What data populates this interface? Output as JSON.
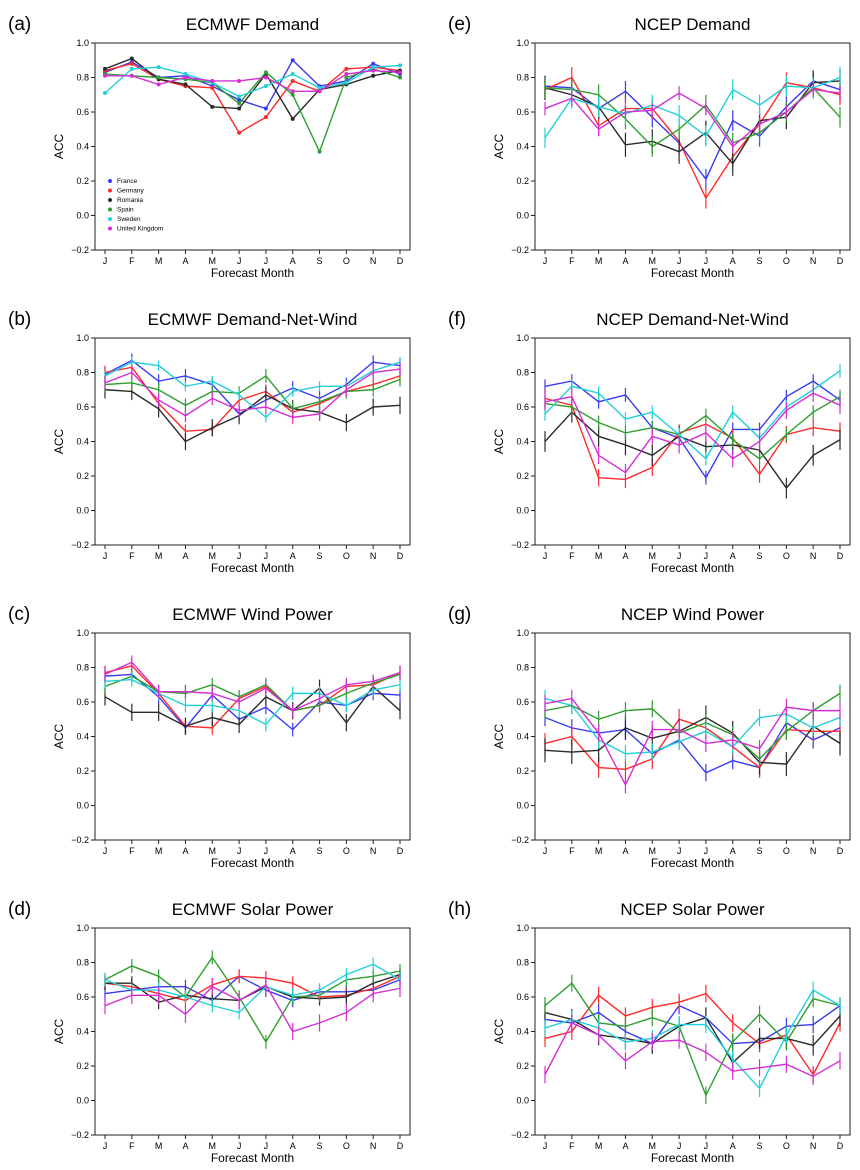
{
  "figure": {
    "x_axis_label": "Forecast Month",
    "y_axis_label": "ACC",
    "months": [
      "J",
      "F",
      "M",
      "A",
      "M",
      "J",
      "J",
      "A",
      "S",
      "O",
      "N",
      "D"
    ],
    "y_ticks": [
      "1.0",
      "0.8",
      "0.6",
      "0.4",
      "0.2",
      "0.0",
      "−0.2"
    ],
    "colors": {
      "France": "#3a3af0",
      "Germany": "#ff2a2a",
      "Romania": "#2a2a2a",
      "Spain": "#2e9e2e",
      "Sweden": "#22d0d8",
      "United Kingdom": "#d42ed4"
    },
    "legend": [
      "France",
      "Germany",
      "Romania",
      "Spain",
      "Sweden",
      "United Kingdom"
    ]
  },
  "chart_data": [
    {
      "type": "line",
      "panel": "(a)",
      "title": "ECMWF Demand",
      "xlabel": "Forecast Month",
      "ylabel": "ACC",
      "ylim": [
        -0.2,
        1.0
      ],
      "categories": [
        "J",
        "F",
        "M",
        "A",
        "M",
        "J",
        "J",
        "A",
        "S",
        "O",
        "N",
        "D"
      ],
      "series": [
        {
          "name": "France",
          "values": [
            0.83,
            0.89,
            0.8,
            0.81,
            0.75,
            0.67,
            0.62,
            0.9,
            0.75,
            0.78,
            0.88,
            0.82
          ]
        },
        {
          "name": "Germany",
          "values": [
            0.84,
            0.88,
            0.79,
            0.75,
            0.74,
            0.48,
            0.57,
            0.78,
            0.72,
            0.85,
            0.86,
            0.84
          ]
        },
        {
          "name": "Romania",
          "values": [
            0.85,
            0.91,
            0.79,
            0.76,
            0.63,
            0.62,
            0.82,
            0.56,
            0.73,
            0.76,
            0.81,
            0.84
          ]
        },
        {
          "name": "Spain",
          "values": [
            0.82,
            0.81,
            0.8,
            0.79,
            0.77,
            0.65,
            0.83,
            0.7,
            0.37,
            0.8,
            0.85,
            0.8
          ]
        },
        {
          "name": "Sweden",
          "values": [
            0.71,
            0.85,
            0.86,
            0.82,
            0.77,
            0.69,
            0.75,
            0.82,
            0.74,
            0.77,
            0.86,
            0.87
          ]
        },
        {
          "name": "United Kingdom",
          "values": [
            0.81,
            0.81,
            0.76,
            0.8,
            0.78,
            0.78,
            0.8,
            0.72,
            0.72,
            0.82,
            0.84,
            0.83
          ]
        }
      ]
    },
    {
      "type": "line",
      "panel": "(b)",
      "title": "ECMWF Demand-Net-Wind",
      "xlabel": "Forecast Month",
      "ylabel": "ACC",
      "ylim": [
        -0.2,
        1.0
      ],
      "categories": [
        "J",
        "F",
        "M",
        "A",
        "M",
        "J",
        "J",
        "A",
        "S",
        "O",
        "N",
        "D"
      ],
      "series": [
        {
          "name": "France",
          "values": [
            0.79,
            0.87,
            0.75,
            0.78,
            0.73,
            0.56,
            0.64,
            0.71,
            0.65,
            0.73,
            0.86,
            0.84
          ],
          "err": 0.04
        },
        {
          "name": "Germany",
          "values": [
            0.8,
            0.83,
            0.62,
            0.46,
            0.47,
            0.64,
            0.69,
            0.57,
            0.62,
            0.69,
            0.73,
            0.78
          ],
          "err": 0.04
        },
        {
          "name": "Romania",
          "values": [
            0.7,
            0.69,
            0.59,
            0.4,
            0.48,
            0.55,
            0.67,
            0.59,
            0.57,
            0.51,
            0.6,
            0.61
          ],
          "err": 0.05
        },
        {
          "name": "Spain",
          "values": [
            0.73,
            0.74,
            0.7,
            0.61,
            0.69,
            0.68,
            0.78,
            0.59,
            0.63,
            0.69,
            0.7,
            0.76
          ],
          "err": 0.04
        },
        {
          "name": "Sweden",
          "values": [
            0.78,
            0.86,
            0.84,
            0.72,
            0.75,
            0.67,
            0.54,
            0.69,
            0.72,
            0.72,
            0.81,
            0.86
          ],
          "err": 0.03
        },
        {
          "name": "United Kingdom",
          "values": [
            0.74,
            0.8,
            0.64,
            0.55,
            0.65,
            0.58,
            0.6,
            0.54,
            0.56,
            0.7,
            0.8,
            0.82
          ],
          "err": 0.04
        }
      ]
    },
    {
      "type": "line",
      "panel": "(c)",
      "title": "ECMWF Wind Power",
      "xlabel": "Forecast Month",
      "ylabel": "ACC",
      "ylim": [
        -0.2,
        1.0
      ],
      "categories": [
        "J",
        "F",
        "M",
        "A",
        "M",
        "J",
        "J",
        "A",
        "S",
        "O",
        "N",
        "D"
      ],
      "series": [
        {
          "name": "France",
          "values": [
            0.75,
            0.76,
            0.63,
            0.45,
            0.64,
            0.5,
            0.57,
            0.44,
            0.6,
            0.58,
            0.65,
            0.64
          ],
          "err": 0.04
        },
        {
          "name": "Germany",
          "values": [
            0.77,
            0.81,
            0.65,
            0.46,
            0.45,
            0.62,
            0.69,
            0.55,
            0.58,
            0.69,
            0.7,
            0.77
          ],
          "err": 0.04
        },
        {
          "name": "Romania",
          "values": [
            0.63,
            0.54,
            0.54,
            0.46,
            0.51,
            0.47,
            0.63,
            0.55,
            0.68,
            0.48,
            0.69,
            0.55
          ],
          "err": 0.05
        },
        {
          "name": "Spain",
          "values": [
            0.69,
            0.75,
            0.66,
            0.65,
            0.7,
            0.63,
            0.7,
            0.55,
            0.58,
            0.65,
            0.71,
            0.76
          ],
          "err": 0.04
        },
        {
          "name": "Sweden",
          "values": [
            0.72,
            0.73,
            0.65,
            0.58,
            0.58,
            0.55,
            0.47,
            0.65,
            0.65,
            0.58,
            0.67,
            0.7
          ],
          "err": 0.04
        },
        {
          "name": "United Kingdom",
          "values": [
            0.76,
            0.83,
            0.66,
            0.66,
            0.65,
            0.6,
            0.68,
            0.55,
            0.62,
            0.7,
            0.72,
            0.77
          ],
          "err": 0.04
        }
      ]
    },
    {
      "type": "line",
      "panel": "(d)",
      "title": "ECMWF Solar Power",
      "xlabel": "Forecast Month",
      "ylabel": "ACC",
      "ylim": [
        -0.2,
        1.0
      ],
      "categories": [
        "J",
        "F",
        "M",
        "A",
        "M",
        "J",
        "J",
        "A",
        "S",
        "O",
        "N",
        "D"
      ],
      "series": [
        {
          "name": "France",
          "values": [
            0.62,
            0.64,
            0.66,
            0.66,
            0.58,
            0.72,
            0.64,
            0.58,
            0.63,
            0.63,
            0.64,
            0.7
          ],
          "err": 0.04
        },
        {
          "name": "Germany",
          "values": [
            0.68,
            0.66,
            0.62,
            0.58,
            0.67,
            0.72,
            0.71,
            0.68,
            0.6,
            0.61,
            0.65,
            0.72
          ],
          "err": 0.04
        },
        {
          "name": "Romania",
          "values": [
            0.68,
            0.68,
            0.57,
            0.61,
            0.59,
            0.58,
            0.66,
            0.6,
            0.59,
            0.6,
            0.68,
            0.73
          ],
          "err": 0.04
        },
        {
          "name": "Spain",
          "values": [
            0.7,
            0.78,
            0.72,
            0.6,
            0.83,
            0.6,
            0.34,
            0.6,
            0.61,
            0.7,
            0.72,
            0.75
          ],
          "err": 0.04
        },
        {
          "name": "Sweden",
          "values": [
            0.7,
            0.64,
            0.64,
            0.6,
            0.55,
            0.51,
            0.66,
            0.61,
            0.64,
            0.73,
            0.79,
            0.7
          ],
          "err": 0.04
        },
        {
          "name": "United Kingdom",
          "values": [
            0.55,
            0.61,
            0.61,
            0.5,
            0.66,
            0.58,
            0.67,
            0.4,
            0.45,
            0.51,
            0.62,
            0.65
          ],
          "err": 0.05
        }
      ]
    },
    {
      "type": "line",
      "panel": "(e)",
      "title": "NCEP Demand",
      "xlabel": "Forecast Month",
      "ylabel": "ACC",
      "ylim": [
        -0.2,
        1.0
      ],
      "categories": [
        "J",
        "F",
        "M",
        "A",
        "M",
        "J",
        "J",
        "A",
        "S",
        "O",
        "N",
        "D"
      ],
      "series": [
        {
          "name": "France",
          "values": [
            0.75,
            0.74,
            0.62,
            0.72,
            0.57,
            0.42,
            0.21,
            0.55,
            0.46,
            0.63,
            0.78,
            0.73
          ],
          "err": 0.06
        },
        {
          "name": "Germany",
          "values": [
            0.73,
            0.8,
            0.52,
            0.62,
            0.62,
            0.43,
            0.1,
            0.34,
            0.53,
            0.77,
            0.74,
            0.7
          ],
          "err": 0.06
        },
        {
          "name": "Romania",
          "values": [
            0.74,
            0.7,
            0.63,
            0.41,
            0.43,
            0.37,
            0.48,
            0.3,
            0.55,
            0.57,
            0.77,
            0.78
          ],
          "err": 0.07
        },
        {
          "name": "Spain",
          "values": [
            0.74,
            0.73,
            0.7,
            0.56,
            0.4,
            0.5,
            0.64,
            0.42,
            0.48,
            0.6,
            0.74,
            0.57
          ],
          "err": 0.06
        },
        {
          "name": "Sweden",
          "values": [
            0.45,
            0.68,
            0.63,
            0.59,
            0.64,
            0.58,
            0.46,
            0.73,
            0.64,
            0.75,
            0.74,
            0.8
          ],
          "err": 0.06
        },
        {
          "name": "United Kingdom",
          "values": [
            0.62,
            0.68,
            0.5,
            0.6,
            0.61,
            0.71,
            0.62,
            0.4,
            0.53,
            0.6,
            0.73,
            0.71
          ],
          "err": 0.04
        }
      ]
    },
    {
      "type": "line",
      "panel": "(f)",
      "title": "NCEP Demand-Net-Wind",
      "xlabel": "Forecast Month",
      "ylabel": "ACC",
      "ylim": [
        -0.2,
        1.0
      ],
      "categories": [
        "J",
        "F",
        "M",
        "A",
        "M",
        "J",
        "J",
        "A",
        "S",
        "O",
        "N",
        "D"
      ],
      "series": [
        {
          "name": "France",
          "values": [
            0.72,
            0.75,
            0.63,
            0.67,
            0.48,
            0.42,
            0.19,
            0.47,
            0.47,
            0.66,
            0.75,
            0.64
          ],
          "err": 0.04
        },
        {
          "name": "Germany",
          "values": [
            0.65,
            0.61,
            0.19,
            0.18,
            0.25,
            0.45,
            0.5,
            0.42,
            0.21,
            0.44,
            0.48,
            0.46
          ],
          "err": 0.05
        },
        {
          "name": "Romania",
          "values": [
            0.4,
            0.57,
            0.43,
            0.38,
            0.32,
            0.43,
            0.37,
            0.38,
            0.35,
            0.13,
            0.32,
            0.41
          ],
          "err": 0.06
        },
        {
          "name": "Spain",
          "values": [
            0.62,
            0.6,
            0.51,
            0.45,
            0.48,
            0.44,
            0.55,
            0.41,
            0.3,
            0.44,
            0.57,
            0.66
          ],
          "err": 0.04
        },
        {
          "name": "Sweden",
          "values": [
            0.56,
            0.72,
            0.68,
            0.53,
            0.57,
            0.44,
            0.3,
            0.57,
            0.42,
            0.6,
            0.7,
            0.81
          ],
          "err": 0.04
        },
        {
          "name": "United Kingdom",
          "values": [
            0.63,
            0.66,
            0.32,
            0.22,
            0.43,
            0.38,
            0.45,
            0.3,
            0.4,
            0.58,
            0.68,
            0.61
          ],
          "err": 0.05
        }
      ]
    },
    {
      "type": "line",
      "panel": "(g)",
      "title": "NCEP Wind Power",
      "xlabel": "Forecast Month",
      "ylabel": "ACC",
      "ylim": [
        -0.2,
        1.0
      ],
      "categories": [
        "J",
        "F",
        "M",
        "A",
        "M",
        "J",
        "J",
        "A",
        "S",
        "O",
        "N",
        "D"
      ],
      "series": [
        {
          "name": "France",
          "values": [
            0.51,
            0.45,
            0.42,
            0.44,
            0.3,
            0.38,
            0.19,
            0.26,
            0.22,
            0.48,
            0.38,
            0.45
          ],
          "err": 0.05
        },
        {
          "name": "Germany",
          "values": [
            0.36,
            0.4,
            0.22,
            0.21,
            0.27,
            0.5,
            0.45,
            0.34,
            0.22,
            0.44,
            0.43,
            0.43
          ],
          "err": 0.06
        },
        {
          "name": "Romania",
          "values": [
            0.32,
            0.31,
            0.32,
            0.45,
            0.39,
            0.43,
            0.51,
            0.42,
            0.25,
            0.24,
            0.46,
            0.36
          ],
          "err": 0.07
        },
        {
          "name": "Spain",
          "values": [
            0.55,
            0.58,
            0.5,
            0.55,
            0.56,
            0.42,
            0.48,
            0.41,
            0.27,
            0.43,
            0.55,
            0.65
          ],
          "err": 0.05
        },
        {
          "name": "Sweden",
          "values": [
            0.62,
            0.58,
            0.38,
            0.3,
            0.31,
            0.37,
            0.43,
            0.34,
            0.51,
            0.53,
            0.45,
            0.51
          ],
          "err": 0.05
        },
        {
          "name": "United Kingdom",
          "values": [
            0.59,
            0.62,
            0.42,
            0.12,
            0.44,
            0.44,
            0.36,
            0.38,
            0.33,
            0.57,
            0.55,
            0.55
          ],
          "err": 0.05
        }
      ]
    },
    {
      "type": "line",
      "panel": "(h)",
      "title": "NCEP Solar Power",
      "xlabel": "Forecast Month",
      "ylabel": "ACC",
      "ylim": [
        -0.2,
        1.0
      ],
      "categories": [
        "J",
        "F",
        "M",
        "A",
        "M",
        "J",
        "J",
        "A",
        "S",
        "O",
        "N",
        "D"
      ],
      "series": [
        {
          "name": "France",
          "values": [
            0.47,
            0.45,
            0.51,
            0.4,
            0.33,
            0.55,
            0.48,
            0.33,
            0.34,
            0.43,
            0.44,
            0.55
          ],
          "err": 0.05
        },
        {
          "name": "Germany",
          "values": [
            0.36,
            0.4,
            0.61,
            0.49,
            0.54,
            0.57,
            0.62,
            0.45,
            0.33,
            0.38,
            0.15,
            0.45
          ],
          "err": 0.05
        },
        {
          "name": "Romania",
          "values": [
            0.51,
            0.47,
            0.38,
            0.36,
            0.33,
            0.43,
            0.48,
            0.22,
            0.36,
            0.36,
            0.32,
            0.49
          ],
          "err": 0.06
        },
        {
          "name": "Spain",
          "values": [
            0.55,
            0.68,
            0.45,
            0.43,
            0.48,
            0.43,
            0.03,
            0.34,
            0.5,
            0.34,
            0.59,
            0.55
          ],
          "err": 0.05
        },
        {
          "name": "Sweden",
          "values": [
            0.42,
            0.47,
            0.42,
            0.34,
            0.36,
            0.44,
            0.44,
            0.24,
            0.07,
            0.38,
            0.64,
            0.55
          ],
          "err": 0.05
        },
        {
          "name": "United Kingdom",
          "values": [
            0.15,
            0.45,
            0.38,
            0.23,
            0.34,
            0.35,
            0.28,
            0.17,
            0.19,
            0.21,
            0.14,
            0.23
          ],
          "err": 0.05
        }
      ]
    }
  ]
}
